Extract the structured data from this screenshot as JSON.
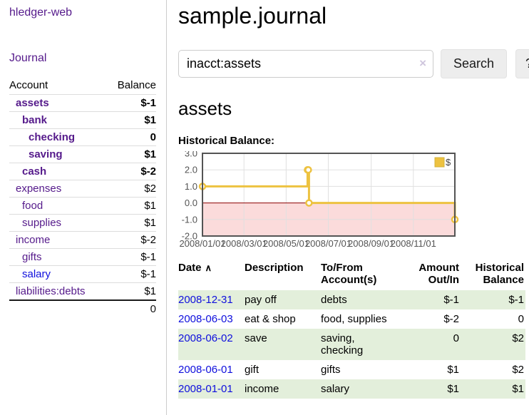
{
  "colors": {
    "link_purple": "#551a8b",
    "link_blue": "#0f0fdd",
    "negative_strong": "#7e1220",
    "negative_muted": "#c28888",
    "register_negative": "#852020",
    "row_stripe_green": "#e3efdb",
    "chart_line_gold": "#edc240",
    "chart_negative_fill": "#fbdbdb",
    "chart_zero_line": "#8b0000",
    "chart_border": "#545454"
  },
  "sidebar": {
    "app_title": "hledger-web",
    "nav": {
      "journal": "Journal"
    },
    "accounts_table": {
      "headers": {
        "account": "Account",
        "balance": "Balance"
      },
      "rows": [
        {
          "name": "assets",
          "level": 1,
          "bold": true,
          "balance": "$-1",
          "balance_style": "neg-strong",
          "link": "purple"
        },
        {
          "name": "bank",
          "level": 2,
          "bold": true,
          "balance": "$1",
          "balance_style": "normal",
          "link": "purple"
        },
        {
          "name": "checking",
          "level": 3,
          "bold": true,
          "balance": "0",
          "balance_style": "normal",
          "link": "purple"
        },
        {
          "name": "saving",
          "level": 3,
          "bold": true,
          "balance": "$1",
          "balance_style": "normal",
          "link": "purple"
        },
        {
          "name": "cash",
          "level": 2,
          "bold": true,
          "balance": "$-2",
          "balance_style": "neg-strong",
          "link": "purple"
        },
        {
          "name": "expenses",
          "level": 1,
          "bold": false,
          "balance": "$2",
          "balance_style": "normal",
          "link": "purple"
        },
        {
          "name": "food",
          "level": 2,
          "bold": false,
          "balance": "$1",
          "balance_style": "normal",
          "link": "purple"
        },
        {
          "name": "supplies",
          "level": 2,
          "bold": false,
          "balance": "$1",
          "balance_style": "normal",
          "link": "purple"
        },
        {
          "name": "income",
          "level": 1,
          "bold": false,
          "balance": "$-2",
          "balance_style": "neg-muted",
          "link": "purple"
        },
        {
          "name": "gifts",
          "level": 2,
          "bold": false,
          "balance": "$-1",
          "balance_style": "neg-muted",
          "link": "purple"
        },
        {
          "name": "salary",
          "level": 2,
          "bold": false,
          "balance": "$-1",
          "balance_style": "neg-muted",
          "link": "blue"
        },
        {
          "name": "liabilities:debts",
          "level": 1,
          "bold": false,
          "balance": "$1",
          "balance_style": "normal",
          "link": "purple"
        }
      ],
      "total": "0"
    }
  },
  "main": {
    "title": "sample.journal",
    "search": {
      "value": "inacct:assets",
      "clear_icon": "×",
      "button_label": "Search",
      "help_label": "?"
    },
    "account_heading": "assets",
    "chart_label": "Historical Balance:"
  },
  "chart_data": {
    "type": "line",
    "step": true,
    "title": "Historical Balance:",
    "series": [
      {
        "name": "$",
        "color": "#edc240",
        "points": [
          [
            "2008-01-01",
            1
          ],
          [
            "2008-06-01",
            2
          ],
          [
            "2008-06-02",
            2
          ],
          [
            "2008-06-03",
            0
          ],
          [
            "2008-12-31",
            -1
          ]
        ]
      }
    ],
    "x_range": [
      "2008-01-01",
      "2008-12-31"
    ],
    "x_ticks": [
      {
        "date": "2008-01-01",
        "label": "2008/01/01"
      },
      {
        "date": "2008-03-01",
        "label": "2008/03/01"
      },
      {
        "date": "2008-05-01",
        "label": "2008/05/01"
      },
      {
        "date": "2008-07-01",
        "label": "2008/07/01"
      },
      {
        "date": "2008-09-01",
        "label": "2008/09/01"
      },
      {
        "date": "2008-11-01",
        "label": "2008/11/01"
      }
    ],
    "y_ticks": [
      {
        "value": 3,
        "label": "3.0"
      },
      {
        "value": 2,
        "label": "2.0"
      },
      {
        "value": 1,
        "label": "1.0"
      },
      {
        "value": 0,
        "label": "0.0"
      },
      {
        "value": -1,
        "label": "-1.0"
      },
      {
        "value": -2,
        "label": "-2.0"
      }
    ],
    "ylim": [
      -2,
      3
    ],
    "grid": true,
    "legend": {
      "label": "$",
      "position": "top-right"
    },
    "negative_fill": "#fbdbdb",
    "zero_line": "#8b0000"
  },
  "register": {
    "headers": {
      "date": "Date",
      "description": "Description",
      "accounts": "To/From Account(s)",
      "amount": "Amount Out/In",
      "balance": "Historical Balance"
    },
    "sort_indicator": "∧",
    "rows": [
      {
        "date": "2008-12-31",
        "description": "pay off",
        "accounts": "debts",
        "amount": "$-1",
        "amount_style": "neg",
        "balance": "$-1",
        "balance_style": "neg"
      },
      {
        "date": "2008-06-03",
        "description": "eat & shop",
        "accounts": "food, supplies",
        "amount": "$-2",
        "amount_style": "neg",
        "balance": "0",
        "balance_style": "normal"
      },
      {
        "date": "2008-06-02",
        "description": "save",
        "accounts": "saving,\nchecking",
        "amount": "0",
        "amount_style": "normal",
        "balance": "$2",
        "balance_style": "normal"
      },
      {
        "date": "2008-06-01",
        "description": "gift",
        "accounts": "gifts",
        "amount": "$1",
        "amount_style": "normal",
        "balance": "$2",
        "balance_style": "normal"
      },
      {
        "date": "2008-01-01",
        "description": "income",
        "accounts": "salary",
        "amount": "$1",
        "amount_style": "normal",
        "balance": "$1",
        "balance_style": "normal"
      }
    ]
  }
}
